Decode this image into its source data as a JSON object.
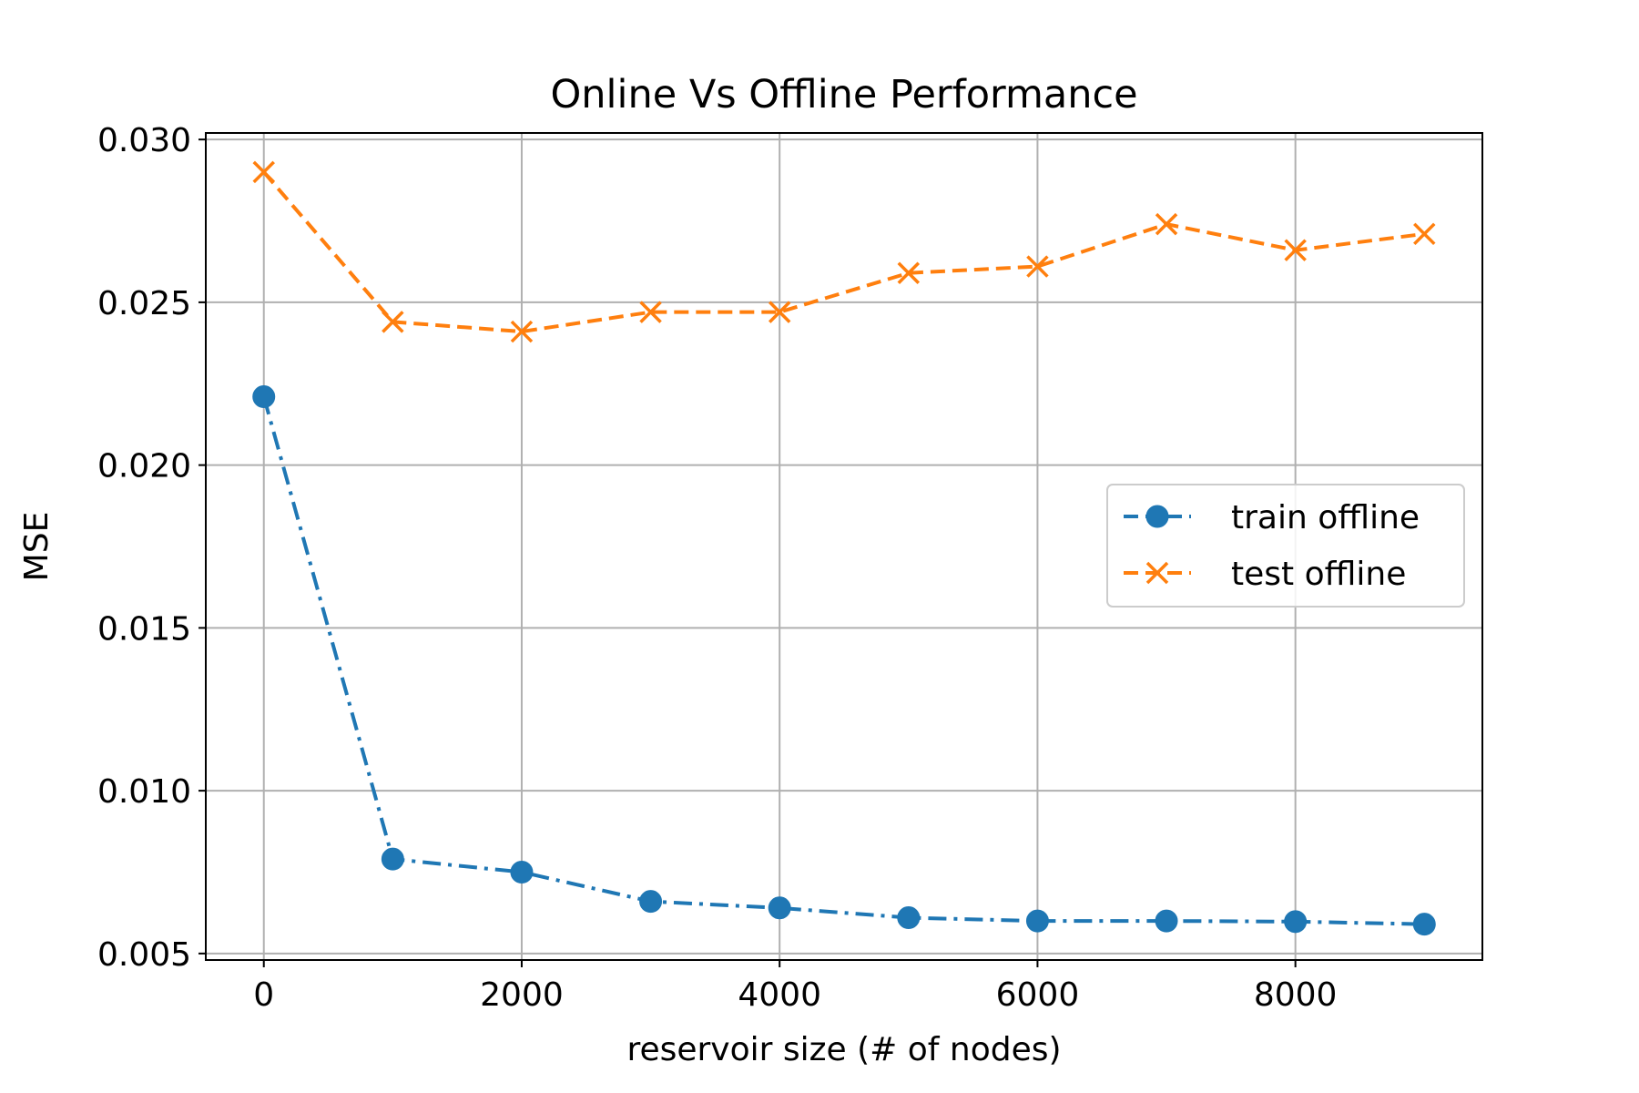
{
  "chart_data": {
    "type": "line",
    "title": "Online Vs Offline Performance",
    "xlabel": "reservoir size (# of nodes)",
    "ylabel": "MSE",
    "x": [
      0,
      1000,
      2000,
      3000,
      4000,
      5000,
      6000,
      7000,
      8000,
      9000
    ],
    "xlim": [
      -450,
      9450
    ],
    "ylim": [
      0.0048,
      0.0302
    ],
    "xticks": [
      0,
      2000,
      4000,
      6000,
      8000
    ],
    "xtick_labels": [
      "0",
      "2000",
      "4000",
      "6000",
      "8000"
    ],
    "yticks": [
      0.005,
      0.01,
      0.015,
      0.02,
      0.025,
      0.03
    ],
    "ytick_labels": [
      "0.005",
      "0.010",
      "0.015",
      "0.020",
      "0.025",
      "0.030"
    ],
    "grid": true,
    "legend_position": "center-right",
    "series": [
      {
        "name": "train offline",
        "color": "#1f77b4",
        "linestyle": "dashdot",
        "marker": "circle",
        "legend_linestyle": "dashed",
        "values": [
          0.0221,
          0.0079,
          0.0075,
          0.0066,
          0.0064,
          0.0061,
          0.006,
          0.006,
          0.00598,
          0.0059
        ]
      },
      {
        "name": "test offline",
        "color": "#ff7f0e",
        "linestyle": "dashed",
        "marker": "x",
        "legend_linestyle": "dashed",
        "values": [
          0.029,
          0.0244,
          0.0241,
          0.0247,
          0.0247,
          0.0259,
          0.0261,
          0.0274,
          0.0266,
          0.0271
        ]
      }
    ]
  }
}
